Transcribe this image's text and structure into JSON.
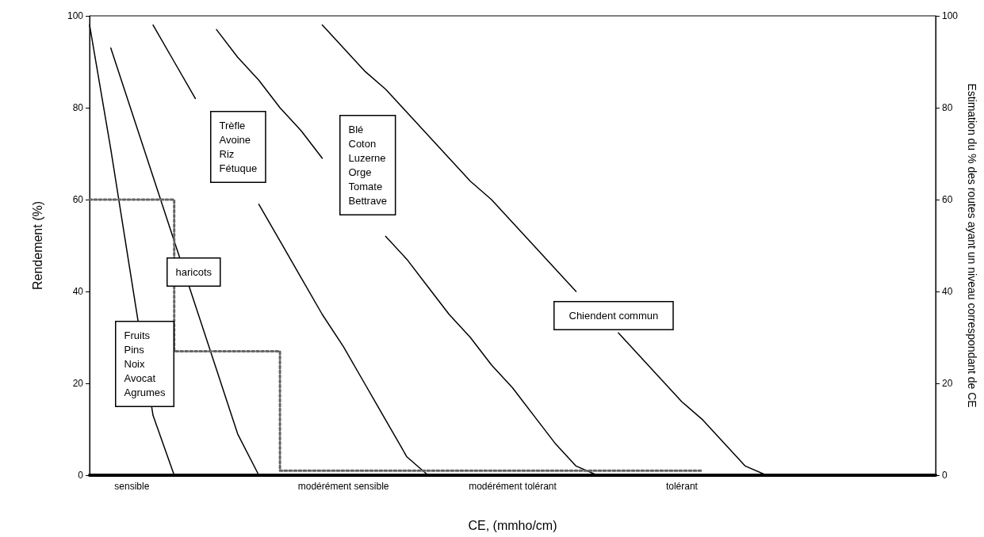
{
  "chart_data": {
    "type": "line",
    "xlabel": "CE, (mmho/cm)",
    "ylabel": "Rendement (%)",
    "y2label": "Estimation du % des routes ayant un niveau correspondant de CE",
    "categories": [
      null,
      null,
      "sensible",
      null,
      null,
      null,
      null,
      null,
      null,
      null,
      null,
      null,
      "modérément sensible",
      null,
      null,
      null,
      null,
      null,
      null,
      null,
      "modérément tolérant",
      null,
      null,
      null,
      null,
      null,
      null,
      null,
      "tolérant",
      null,
      null,
      null,
      null,
      null,
      null,
      null,
      null,
      null,
      null,
      null,
      null
    ],
    "series": [
      {
        "color": "#000000",
        "line_style": "solid",
        "values": [
          98,
          71,
          42,
          13,
          0,
          null,
          null,
          null,
          null,
          null,
          null,
          null,
          null,
          null,
          null,
          null,
          null,
          null,
          null,
          null,
          null,
          null,
          null,
          null,
          null,
          null,
          null,
          null,
          null,
          null,
          null,
          null,
          null,
          null,
          null,
          null,
          null,
          null,
          null,
          null,
          null
        ]
      },
      {
        "color": "#000000",
        "line_style": "solid",
        "values": [
          null,
          93,
          79,
          65,
          51,
          37,
          23,
          9,
          0,
          null,
          null,
          null,
          null,
          null,
          null,
          null,
          null,
          null,
          null,
          null,
          null,
          null,
          null,
          null,
          null,
          null,
          null,
          null,
          null,
          null,
          null,
          null,
          null,
          null,
          null,
          null,
          null,
          null,
          null,
          null,
          null
        ]
      },
      {
        "color": "#000000",
        "line_style": "solid",
        "values": [
          null,
          null,
          null,
          98,
          90,
          82,
          null,
          null,
          59,
          51,
          43,
          35,
          28,
          20,
          12,
          4,
          0,
          null,
          null,
          null,
          null,
          null,
          null,
          null,
          null,
          null,
          null,
          null,
          null,
          null,
          null,
          null,
          null,
          null,
          null,
          null,
          null,
          null,
          null,
          null,
          null
        ]
      },
      {
        "color": "#000000",
        "line_style": "solid",
        "values": [
          null,
          null,
          null,
          null,
          null,
          null,
          97,
          91,
          86,
          80,
          75,
          69,
          null,
          null,
          52,
          47,
          41,
          35,
          30,
          24,
          19,
          13,
          7,
          2,
          0,
          null,
          null,
          null,
          null,
          null,
          null,
          null,
          null,
          null,
          null,
          null,
          null,
          null,
          null,
          null,
          null
        ]
      },
      {
        "color": "#000000",
        "line_style": "solid",
        "values": [
          null,
          null,
          null,
          null,
          null,
          null,
          null,
          null,
          null,
          null,
          null,
          98,
          93,
          88,
          84,
          79,
          74,
          69,
          64,
          60,
          55,
          50,
          45,
          40,
          null,
          31,
          26,
          21,
          16,
          12,
          7,
          2,
          0,
          null,
          null,
          null,
          null,
          null,
          null,
          null,
          null
        ]
      },
      {
        "type": "step",
        "axis": "y2",
        "color": "#666666",
        "line_style": "dotted",
        "values": [
          60,
          60,
          60,
          60,
          60,
          27,
          27,
          27,
          27,
          27,
          1,
          1,
          1,
          1,
          1,
          1,
          1,
          1,
          1,
          1,
          1,
          1,
          1,
          1,
          1,
          1,
          1,
          1,
          1,
          1,
          null,
          null,
          null,
          null,
          null,
          null,
          null,
          null,
          null,
          null,
          null
        ]
      }
    ],
    "annotations": [
      "Trèfle\nAvoine\nRiz\nFétuque",
      "Blé\nCoton\nLuzerne\nOrge\nTomate\nBettrave",
      "haricots",
      "Fruits\nPins\nNoix\nAvocat\nAgrumes",
      "Chiendent commun"
    ],
    "ylim": [
      0,
      100
    ],
    "yticks": [
      0,
      20,
      40,
      60,
      80,
      100
    ],
    "y2lim": [
      0,
      100
    ],
    "y2ticks": [
      0,
      20,
      40,
      60,
      80,
      100
    ],
    "grid": false,
    "marker": "none"
  }
}
